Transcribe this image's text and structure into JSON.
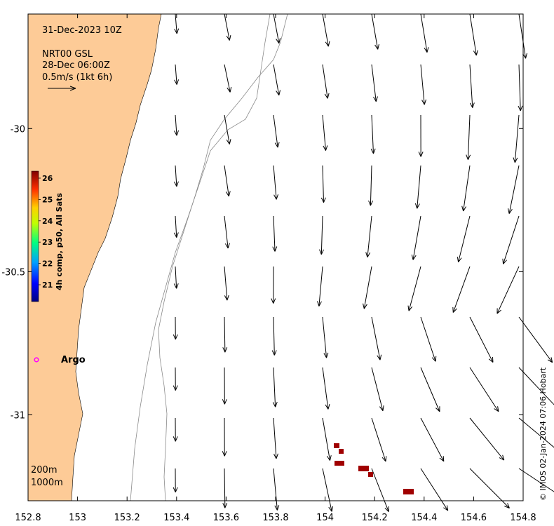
{
  "title": {
    "timestamp": "31-Dec-2023 10Z",
    "product": "NRT00 GSL",
    "product_time": "28-Dec 06:00Z",
    "scale_label": "0.5m/s (1kt 6h)"
  },
  "colorbar": {
    "label": "4h comp, p50, All Sats",
    "ticks": [
      "21",
      "22",
      "23",
      "24",
      "25",
      "26"
    ]
  },
  "argo": {
    "label": "Argo",
    "marker_color": "#ff00ff"
  },
  "bathymetry_legend": [
    "200m",
    "1000m"
  ],
  "credit": "© IMOS 02-Jan-2024 07:06 Hobart",
  "axes": {
    "x_ticks": [
      "152.8",
      "153",
      "153.2",
      "153.4",
      "153.6",
      "153.8",
      "154",
      "154.2",
      "154.4",
      "154.6",
      "154.8"
    ],
    "y_ticks": [
      "-30",
      "-30.5",
      "-31"
    ],
    "lon_range": [
      152.8,
      154.8
    ],
    "lat_range": [
      -31.3,
      -29.6
    ]
  },
  "colors": {
    "land": "#fdcb97",
    "sst_pixels": "#a00000",
    "arrows": "#000000",
    "bathymetry": "#8a8a8a"
  }
}
